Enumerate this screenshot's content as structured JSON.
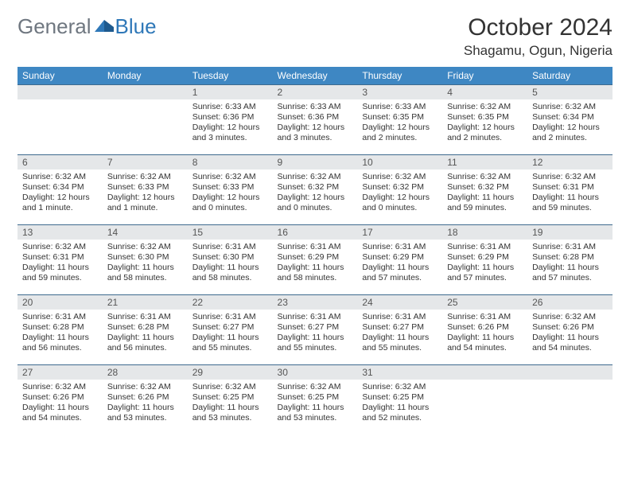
{
  "logo": {
    "gen": "General",
    "blue": "Blue"
  },
  "title": "October 2024",
  "location": "Shagamu, Ogun, Nigeria",
  "colors": {
    "header_bg": "#3e87c3",
    "daynum_bg": "#e5e7e9",
    "rule": "#3e6a8e",
    "logo_gray": "#6f7780",
    "logo_blue": "#2f78b8"
  },
  "day_headers": [
    "Sunday",
    "Monday",
    "Tuesday",
    "Wednesday",
    "Thursday",
    "Friday",
    "Saturday"
  ],
  "weeks": [
    [
      {
        "n": "",
        "empty": true
      },
      {
        "n": "",
        "empty": true
      },
      {
        "n": "1",
        "sr": "6:33 AM",
        "ss": "6:36 PM",
        "dl": "12 hours and 3 minutes."
      },
      {
        "n": "2",
        "sr": "6:33 AM",
        "ss": "6:36 PM",
        "dl": "12 hours and 3 minutes."
      },
      {
        "n": "3",
        "sr": "6:33 AM",
        "ss": "6:35 PM",
        "dl": "12 hours and 2 minutes."
      },
      {
        "n": "4",
        "sr": "6:32 AM",
        "ss": "6:35 PM",
        "dl": "12 hours and 2 minutes."
      },
      {
        "n": "5",
        "sr": "6:32 AM",
        "ss": "6:34 PM",
        "dl": "12 hours and 2 minutes."
      }
    ],
    [
      {
        "n": "6",
        "sr": "6:32 AM",
        "ss": "6:34 PM",
        "dl": "12 hours and 1 minute."
      },
      {
        "n": "7",
        "sr": "6:32 AM",
        "ss": "6:33 PM",
        "dl": "12 hours and 1 minute."
      },
      {
        "n": "8",
        "sr": "6:32 AM",
        "ss": "6:33 PM",
        "dl": "12 hours and 0 minutes."
      },
      {
        "n": "9",
        "sr": "6:32 AM",
        "ss": "6:32 PM",
        "dl": "12 hours and 0 minutes."
      },
      {
        "n": "10",
        "sr": "6:32 AM",
        "ss": "6:32 PM",
        "dl": "12 hours and 0 minutes."
      },
      {
        "n": "11",
        "sr": "6:32 AM",
        "ss": "6:32 PM",
        "dl": "11 hours and 59 minutes."
      },
      {
        "n": "12",
        "sr": "6:32 AM",
        "ss": "6:31 PM",
        "dl": "11 hours and 59 minutes."
      }
    ],
    [
      {
        "n": "13",
        "sr": "6:32 AM",
        "ss": "6:31 PM",
        "dl": "11 hours and 59 minutes."
      },
      {
        "n": "14",
        "sr": "6:32 AM",
        "ss": "6:30 PM",
        "dl": "11 hours and 58 minutes."
      },
      {
        "n": "15",
        "sr": "6:31 AM",
        "ss": "6:30 PM",
        "dl": "11 hours and 58 minutes."
      },
      {
        "n": "16",
        "sr": "6:31 AM",
        "ss": "6:29 PM",
        "dl": "11 hours and 58 minutes."
      },
      {
        "n": "17",
        "sr": "6:31 AM",
        "ss": "6:29 PM",
        "dl": "11 hours and 57 minutes."
      },
      {
        "n": "18",
        "sr": "6:31 AM",
        "ss": "6:29 PM",
        "dl": "11 hours and 57 minutes."
      },
      {
        "n": "19",
        "sr": "6:31 AM",
        "ss": "6:28 PM",
        "dl": "11 hours and 57 minutes."
      }
    ],
    [
      {
        "n": "20",
        "sr": "6:31 AM",
        "ss": "6:28 PM",
        "dl": "11 hours and 56 minutes."
      },
      {
        "n": "21",
        "sr": "6:31 AM",
        "ss": "6:28 PM",
        "dl": "11 hours and 56 minutes."
      },
      {
        "n": "22",
        "sr": "6:31 AM",
        "ss": "6:27 PM",
        "dl": "11 hours and 55 minutes."
      },
      {
        "n": "23",
        "sr": "6:31 AM",
        "ss": "6:27 PM",
        "dl": "11 hours and 55 minutes."
      },
      {
        "n": "24",
        "sr": "6:31 AM",
        "ss": "6:27 PM",
        "dl": "11 hours and 55 minutes."
      },
      {
        "n": "25",
        "sr": "6:31 AM",
        "ss": "6:26 PM",
        "dl": "11 hours and 54 minutes."
      },
      {
        "n": "26",
        "sr": "6:32 AM",
        "ss": "6:26 PM",
        "dl": "11 hours and 54 minutes."
      }
    ],
    [
      {
        "n": "27",
        "sr": "6:32 AM",
        "ss": "6:26 PM",
        "dl": "11 hours and 54 minutes."
      },
      {
        "n": "28",
        "sr": "6:32 AM",
        "ss": "6:26 PM",
        "dl": "11 hours and 53 minutes."
      },
      {
        "n": "29",
        "sr": "6:32 AM",
        "ss": "6:25 PM",
        "dl": "11 hours and 53 minutes."
      },
      {
        "n": "30",
        "sr": "6:32 AM",
        "ss": "6:25 PM",
        "dl": "11 hours and 53 minutes."
      },
      {
        "n": "31",
        "sr": "6:32 AM",
        "ss": "6:25 PM",
        "dl": "11 hours and 52 minutes."
      },
      {
        "n": "",
        "empty": true
      },
      {
        "n": "",
        "empty": true
      }
    ]
  ],
  "labels": {
    "sunrise": "Sunrise:",
    "sunset": "Sunset:",
    "daylight": "Daylight:"
  }
}
